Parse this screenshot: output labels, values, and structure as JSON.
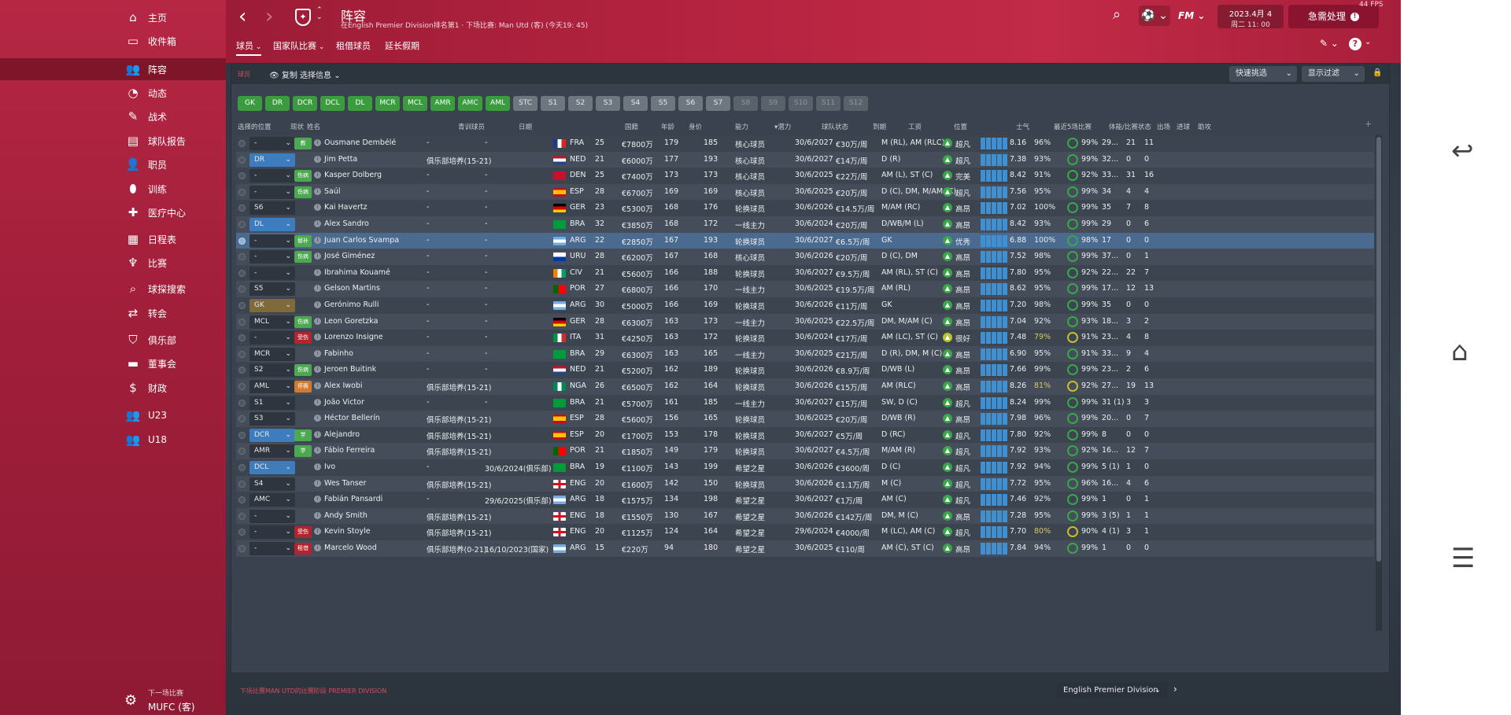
{
  "sidebar": {
    "items": [
      {
        "label": "主页",
        "icon": "home-icon",
        "glyph": "⌂"
      },
      {
        "label": "收件箱",
        "icon": "inbox-icon",
        "glyph": "▭"
      },
      {
        "label": "阵容",
        "icon": "squad-icon",
        "glyph": "👥",
        "active": true
      },
      {
        "label": "动态",
        "icon": "dynamics-icon",
        "glyph": "◔"
      },
      {
        "label": "战术",
        "icon": "tactics-icon",
        "glyph": "✎"
      },
      {
        "label": "球队报告",
        "icon": "report-icon",
        "glyph": "▤"
      },
      {
        "label": "职员",
        "icon": "staff-icon",
        "glyph": "👤"
      },
      {
        "label": "训练",
        "icon": "training-icon",
        "glyph": "⬮"
      },
      {
        "label": "医疗中心",
        "icon": "medical-icon",
        "glyph": "✚"
      },
      {
        "label": "日程表",
        "icon": "schedule-icon",
        "glyph": "▦"
      },
      {
        "label": "比赛",
        "icon": "trophy-icon",
        "glyph": "♆"
      },
      {
        "label": "球探搜索",
        "icon": "scouting-icon",
        "glyph": "⌕"
      },
      {
        "label": "转会",
        "icon": "transfer-icon",
        "glyph": "⇄"
      },
      {
        "label": "俱乐部",
        "icon": "club-icon",
        "glyph": "⛉"
      },
      {
        "label": "董事会",
        "icon": "board-icon",
        "glyph": "▬"
      },
      {
        "label": "财政",
        "icon": "finance-icon",
        "glyph": "$"
      },
      {
        "label": "U23",
        "icon": "u23-icon",
        "glyph": "👥"
      },
      {
        "label": "U18",
        "icon": "u18-icon",
        "glyph": "👥"
      }
    ],
    "footer": {
      "small": "下一场比赛",
      "big": "MUFC (客)"
    }
  },
  "header": {
    "title": "阵容",
    "subtitle": "在English Premier Division排名第1 · 下场比赛: Man Utd (客) (今天19: 45)",
    "date_line1": "2023.4月 4",
    "date_line2": "周二 11: 00",
    "continue_label": "急需处理",
    "fps": "44 FPS",
    "fm_label": "FM"
  },
  "subtabs": [
    "球员",
    "国家队比赛",
    "租借球员",
    "延长假期"
  ],
  "panel": {
    "label": "球员",
    "copy_label": "复制 选择信息",
    "quick_pick": "快速挑选",
    "view_filter": "显示过滤"
  },
  "positions": [
    {
      "l": "GK",
      "s": "g"
    },
    {
      "l": "DR",
      "s": "g"
    },
    {
      "l": "DCR",
      "s": "g"
    },
    {
      "l": "DCL",
      "s": "g"
    },
    {
      "l": "DL",
      "s": "g"
    },
    {
      "l": "MCR",
      "s": "g"
    },
    {
      "l": "MCL",
      "s": "g"
    },
    {
      "l": "AMR",
      "s": "g"
    },
    {
      "l": "AMC",
      "s": "g"
    },
    {
      "l": "AML",
      "s": "g"
    },
    {
      "l": "STC",
      "s": "s"
    },
    {
      "l": "S1",
      "s": "s"
    },
    {
      "l": "S2",
      "s": "s"
    },
    {
      "l": "S3",
      "s": "s"
    },
    {
      "l": "S4",
      "s": "s"
    },
    {
      "l": "S5",
      "s": "s"
    },
    {
      "l": "S6",
      "s": "s"
    },
    {
      "l": "S7",
      "s": "s"
    },
    {
      "l": "S8",
      "s": "f"
    },
    {
      "l": "S9",
      "s": "f"
    },
    {
      "l": "S10",
      "s": "f"
    },
    {
      "l": "S11",
      "s": "f"
    },
    {
      "l": "S12",
      "s": "f"
    }
  ],
  "columns": [
    "选择的位置",
    "现状",
    "姓名",
    "青训球员",
    "日期",
    "国籍",
    "年龄",
    "身价",
    "能力",
    "▾潜力",
    "球队状态",
    "到期",
    "工资",
    "位置",
    "士气",
    "最近5场比赛",
    "体能/比赛状态",
    "出场",
    "进球",
    "助攻"
  ],
  "players": [
    {
      "sel": "-",
      "tag": "教",
      "tagc": "green",
      "name": "Ousmane Dembélé",
      "youth": "-",
      "date": "-",
      "nat": "FRA",
      "age": "25",
      "val": "€7800万",
      "ca": "179",
      "pa": "185",
      "st": "核心球员",
      "exp": "30/6/2027",
      "wage": "€30万/周",
      "pos": "M (RL), AM (RLC)",
      "mor": "超凡",
      "form": "8.16",
      "fit": "96%",
      "mc": "99%",
      "apps": "29...",
      "gls": "21",
      "ast": "11"
    },
    {
      "sel": "DR",
      "selc": "blue",
      "name": "Jim Petta",
      "youth": "俱乐部培养(15-21)",
      "date": "-",
      "nat": "NED",
      "age": "21",
      "val": "€6000万",
      "ca": "177",
      "pa": "193",
      "st": "核心球员",
      "exp": "30/6/2027",
      "wage": "€14万/周",
      "pos": "D (R)",
      "mor": "超凡",
      "form": "7.38",
      "fit": "93%",
      "mc": "99%",
      "apps": "32...",
      "gls": "0",
      "ast": "0"
    },
    {
      "sel": "-",
      "tag": "伤病",
      "tagc": "green",
      "name": "Kasper Dolberg",
      "youth": "-",
      "date": "-",
      "nat": "DEN",
      "age": "25",
      "val": "€7400万",
      "ca": "173",
      "pa": "173",
      "st": "核心球员",
      "exp": "30/6/2025",
      "wage": "€22万/周",
      "pos": "AM (L), ST (C)",
      "mor": "完美",
      "form": "8.42",
      "fit": "91%",
      "mc": "92%",
      "apps": "33...",
      "gls": "31",
      "ast": "16"
    },
    {
      "sel": "-",
      "tag": "伤病",
      "tagc": "green",
      "name": "Saúl",
      "youth": "-",
      "date": "-",
      "nat": "ESP",
      "age": "28",
      "val": "€6700万",
      "ca": "169",
      "pa": "169",
      "st": "核心球员",
      "exp": "30/6/2025",
      "wage": "€20万/周",
      "pos": "D (C), DM, M/AM (C)",
      "mor": "超凡",
      "form": "7.56",
      "fit": "95%",
      "mc": "99%",
      "apps": "34",
      "gls": "4",
      "ast": "4"
    },
    {
      "sel": "S6",
      "name": "Kai Havertz",
      "youth": "-",
      "date": "-",
      "nat": "GER",
      "age": "23",
      "val": "€5300万",
      "ca": "168",
      "pa": "176",
      "st": "轮换球员",
      "exp": "30/6/2026",
      "wage": "€14.5万/周",
      "pos": "M/AM (RC)",
      "mor": "高昂",
      "form": "7.02",
      "fit": "100%",
      "mc": "99%",
      "apps": "35",
      "gls": "7",
      "ast": "8"
    },
    {
      "sel": "DL",
      "selc": "blue",
      "name": "Alex Sandro",
      "youth": "-",
      "date": "-",
      "nat": "BRA",
      "age": "32",
      "val": "€3850万",
      "ca": "168",
      "pa": "172",
      "st": "一线主力",
      "exp": "30/6/2024",
      "wage": "€20万/周",
      "pos": "D/WB/M (L)",
      "mor": "高昂",
      "form": "8.42",
      "fit": "93%",
      "mc": "99%",
      "apps": "29",
      "gls": "0",
      "ast": "6"
    },
    {
      "sel": "-",
      "tag": "替补",
      "tagc": "green",
      "name": "Juan Carlos Svampa",
      "youth": "-",
      "date": "-",
      "nat": "ARG",
      "age": "22",
      "val": "€2850万",
      "ca": "167",
      "pa": "193",
      "st": "轮换球员",
      "exp": "30/6/2027",
      "wage": "€6.5万/周",
      "pos": "GK",
      "mor": "优秀",
      "form": "6.88",
      "fit": "100%",
      "mc": "98%",
      "apps": "17",
      "gls": "0",
      "ast": "0",
      "selected": true
    },
    {
      "sel": "-",
      "tag": "伤病",
      "tagc": "green",
      "name": "José Giménez",
      "youth": "-",
      "date": "-",
      "nat": "URU",
      "age": "28",
      "val": "€6200万",
      "ca": "167",
      "pa": "168",
      "st": "核心球员",
      "exp": "30/6/2026",
      "wage": "€20万/周",
      "pos": "D (C), DM",
      "mor": "高昂",
      "form": "7.52",
      "fit": "98%",
      "mc": "99%",
      "apps": "37...",
      "gls": "0",
      "ast": "1"
    },
    {
      "sel": "-",
      "name": "Ibrahima Kouamé",
      "youth": "-",
      "date": "-",
      "nat": "CIV",
      "age": "21",
      "val": "€5600万",
      "ca": "166",
      "pa": "188",
      "st": "轮换球员",
      "exp": "30/6/2027",
      "wage": "€9.5万/周",
      "pos": "AM (RL), ST (C)",
      "mor": "高昂",
      "form": "7.80",
      "fit": "95%",
      "mc": "92%",
      "apps": "22...",
      "gls": "22",
      "ast": "7"
    },
    {
      "sel": "S5",
      "name": "Gelson Martins",
      "youth": "-",
      "date": "-",
      "nat": "POR",
      "age": "27",
      "val": "€6800万",
      "ca": "166",
      "pa": "170",
      "st": "一线主力",
      "exp": "30/6/2025",
      "wage": "€19.5万/周",
      "pos": "AM (RL)",
      "mor": "高昂",
      "form": "8.62",
      "fit": "95%",
      "mc": "99%",
      "apps": "17...",
      "gls": "12",
      "ast": "13"
    },
    {
      "sel": "GK",
      "selc": "gold",
      "name": "Gerónimo Rulli",
      "youth": "-",
      "date": "-",
      "nat": "ARG",
      "age": "30",
      "val": "€5000万",
      "ca": "166",
      "pa": "169",
      "st": "轮换球员",
      "exp": "30/6/2026",
      "wage": "€11万/周",
      "pos": "GK",
      "mor": "高昂",
      "form": "7.20",
      "fit": "98%",
      "mc": "99%",
      "apps": "35",
      "gls": "0",
      "ast": "0"
    },
    {
      "sel": "MCL",
      "tag": "伤病",
      "tagc": "green",
      "name": "Leon Goretzka",
      "youth": "-",
      "date": "-",
      "nat": "GER",
      "age": "28",
      "val": "€6300万",
      "ca": "163",
      "pa": "173",
      "st": "一线主力",
      "exp": "30/6/2025",
      "wage": "€22.5万/周",
      "pos": "DM, M/AM (C)",
      "mor": "高昂",
      "form": "7.04",
      "fit": "92%",
      "mc": "93%",
      "apps": "18...",
      "gls": "3",
      "ast": "2"
    },
    {
      "sel": "-",
      "tag": "受伤",
      "tagc": "red",
      "name": "Lorenzo Insigne",
      "youth": "-",
      "date": "-",
      "nat": "ITA",
      "age": "31",
      "val": "€4250万",
      "ca": "163",
      "pa": "172",
      "st": "轮换球员",
      "exp": "30/6/2024",
      "wage": "€17万/周",
      "pos": "AM (LC), ST (C)",
      "mor": "很好",
      "mory": true,
      "form": "7.48",
      "fit": "79%",
      "fity": true,
      "mc": "91%",
      "apps": "23...",
      "gls": "4",
      "ast": "8"
    },
    {
      "sel": "MCR",
      "name": "Fabinho",
      "youth": "-",
      "date": "-",
      "nat": "BRA",
      "age": "29",
      "val": "€6300万",
      "ca": "163",
      "pa": "165",
      "st": "一线主力",
      "exp": "30/6/2025",
      "wage": "€21万/周",
      "pos": "D (R), DM, M (C)",
      "mor": "高昂",
      "form": "6.90",
      "fit": "95%",
      "mc": "91%",
      "apps": "33...",
      "gls": "9",
      "ast": "4"
    },
    {
      "sel": "S2",
      "tag": "伤病",
      "tagc": "green",
      "name": "Jeroen Buitink",
      "youth": "-",
      "date": "-",
      "nat": "NED",
      "age": "21",
      "val": "€5200万",
      "ca": "162",
      "pa": "189",
      "st": "轮换球员",
      "exp": "30/6/2026",
      "wage": "€8.9万/周",
      "pos": "D/WB (L)",
      "mor": "高昂",
      "form": "7.66",
      "fit": "99%",
      "mc": "99%",
      "apps": "23...",
      "gls": "2",
      "ast": "6"
    },
    {
      "sel": "AML",
      "tag": "停赛",
      "tagc": "orange",
      "name": "Alex Iwobi",
      "youth": "俱乐部培养(15-21)",
      "date": "-",
      "nat": "NGA",
      "age": "26",
      "val": "€6500万",
      "ca": "162",
      "pa": "164",
      "st": "轮换球员",
      "exp": "30/6/2026",
      "wage": "€15万/周",
      "pos": "AM (RLC)",
      "mor": "高昂",
      "form": "8.26",
      "fit": "81%",
      "fity": true,
      "mc": "92%",
      "apps": "27...",
      "gls": "19",
      "ast": "13"
    },
    {
      "sel": "S1",
      "name": "João Victor",
      "youth": "-",
      "date": "-",
      "nat": "BRA",
      "age": "21",
      "val": "€5700万",
      "ca": "161",
      "pa": "185",
      "st": "一线主力",
      "exp": "30/6/2027",
      "wage": "€15万/周",
      "pos": "SW, D (C)",
      "mor": "超凡",
      "form": "8.24",
      "fit": "99%",
      "mc": "99%",
      "apps": "31 (1)",
      "gls": "3",
      "ast": "3"
    },
    {
      "sel": "S3",
      "name": "Héctor Bellerín",
      "youth": "俱乐部培养(15-21)",
      "date": "-",
      "nat": "ESP",
      "age": "28",
      "val": "€5600万",
      "ca": "156",
      "pa": "165",
      "st": "轮换球员",
      "exp": "30/6/2025",
      "wage": "€20万/周",
      "pos": "D/WB (R)",
      "mor": "高昂",
      "form": "7.98",
      "fit": "96%",
      "mc": "99%",
      "apps": "20...",
      "gls": "0",
      "ast": "7"
    },
    {
      "sel": "DCR",
      "selc": "blue",
      "tag": "学",
      "tagc": "green",
      "name": "Alejandro",
      "youth": "俱乐部培养(15-21)",
      "date": "-",
      "nat": "ESP",
      "age": "20",
      "val": "€1700万",
      "ca": "153",
      "pa": "178",
      "st": "轮换球员",
      "exp": "30/6/2027",
      "wage": "€5万/周",
      "pos": "D (RC)",
      "mor": "超凡",
      "form": "7.80",
      "fit": "92%",
      "mc": "99%",
      "apps": "8",
      "gls": "0",
      "ast": "0"
    },
    {
      "sel": "AMR",
      "tag": "学",
      "tagc": "green",
      "name": "Fábio Ferreira",
      "youth": "俱乐部培养(15-21)",
      "date": "-",
      "nat": "POR",
      "age": "21",
      "val": "€1850万",
      "ca": "149",
      "pa": "179",
      "st": "轮换球员",
      "exp": "30/6/2027",
      "wage": "€4.5万/周",
      "pos": "M/AM (R)",
      "mor": "超凡",
      "form": "7.92",
      "fit": "93%",
      "mc": "92%",
      "apps": "16...",
      "gls": "12",
      "ast": "7"
    },
    {
      "sel": "DCL",
      "selc": "blue",
      "name": "Ivo",
      "youth": "-",
      "date": "30/6/2024(俱乐部)",
      "nat": "BRA",
      "age": "19",
      "val": "€1100万",
      "ca": "143",
      "pa": "199",
      "st": "希望之星",
      "exp": "30/6/2026",
      "wage": "€3600/周",
      "pos": "D (C)",
      "mor": "超凡",
      "form": "7.92",
      "fit": "94%",
      "mc": "99%",
      "apps": "5 (1)",
      "gls": "1",
      "ast": "0"
    },
    {
      "sel": "S4",
      "name": "Wes Tanser",
      "youth": "俱乐部培养(15-21)",
      "date": "-",
      "nat": "ENG",
      "age": "20",
      "val": "€1600万",
      "ca": "142",
      "pa": "150",
      "st": "轮换球员",
      "exp": "30/6/2026",
      "wage": "€1.1万/周",
      "pos": "M (C)",
      "mor": "超凡",
      "form": "7.72",
      "fit": "95%",
      "mc": "96%",
      "apps": "16...",
      "gls": "4",
      "ast": "6"
    },
    {
      "sel": "AMC",
      "name": "Fabián Pansardi",
      "youth": "-",
      "date": "29/6/2025(俱乐部)",
      "nat": "ARG",
      "age": "18",
      "val": "€1575万",
      "ca": "134",
      "pa": "198",
      "st": "希望之星",
      "exp": "30/6/2027",
      "wage": "€1万/周",
      "pos": "AM (C)",
      "mor": "超凡",
      "form": "7.46",
      "fit": "92%",
      "mc": "99%",
      "apps": "1",
      "gls": "0",
      "ast": "1"
    },
    {
      "sel": "-",
      "name": "Andy Smith",
      "youth": "俱乐部培养(15-21)",
      "date": "-",
      "nat": "ENG",
      "age": "18",
      "val": "€1550万",
      "ca": "130",
      "pa": "167",
      "st": "希望之星",
      "exp": "30/6/2026",
      "wage": "€142万/周",
      "pos": "DM, M (C)",
      "mor": "高昂",
      "form": "7.28",
      "fit": "95%",
      "mc": "99%",
      "apps": "3 (5)",
      "gls": "1",
      "ast": "1"
    },
    {
      "sel": "-",
      "tag": "受伤",
      "tagc": "red",
      "name": "Kevin Stoyle",
      "youth": "俱乐部培养(15-21)",
      "date": "-",
      "nat": "ENG",
      "age": "20",
      "val": "€1125万",
      "ca": "124",
      "pa": "164",
      "st": "希望之星",
      "exp": "29/6/2024",
      "wage": "€4000/周",
      "pos": "M (LC), AM (C)",
      "mor": "超凡",
      "form": "7.70",
      "fit": "80%",
      "fity": true,
      "mc": "90%",
      "apps": "4 (1)",
      "gls": "3",
      "ast": "1"
    },
    {
      "sel": "-",
      "tag": "租借",
      "tagc": "red",
      "name": "Marcelo Wood",
      "youth": "俱乐部培养(0-21)",
      "date": "16/10/2023(国家)",
      "nat": "ARG",
      "age": "15",
      "val": "€220万",
      "ca": "94",
      "pa": "180",
      "st": "希望之星",
      "exp": "30/6/2025",
      "wage": "€110/周",
      "pos": "AM (C), ST (C)",
      "mor": "高昂",
      "form": "7.84",
      "fit": "94%",
      "mc": "99%",
      "apps": "1",
      "gls": "0",
      "ast": "0"
    }
  ],
  "bottom": {
    "next_match": "下场比赛MAN UTD的比赛阶段 PREMIER DIVISION",
    "league": "English Premier Division"
  },
  "colors": {
    "accent": "#b4233f",
    "green": "#3a9b3f",
    "blue": "#3e7dbd"
  }
}
